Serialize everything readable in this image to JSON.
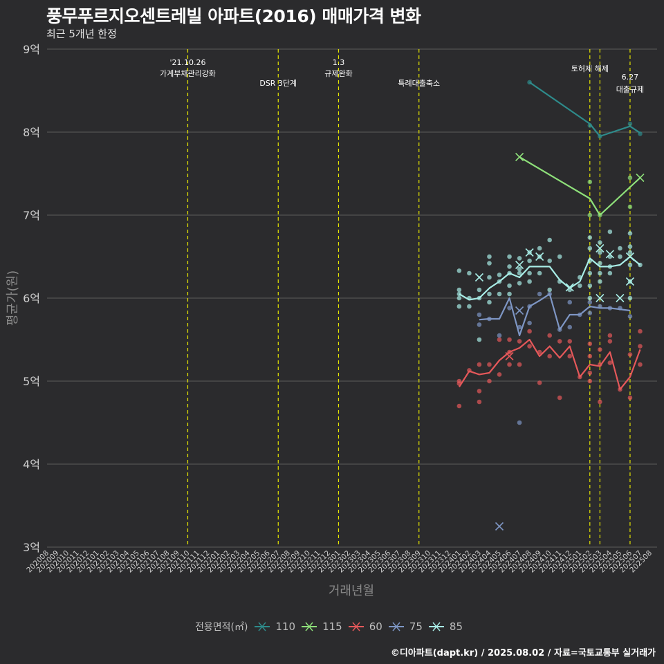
{
  "title": "풍무푸르지오센트레빌 아파트(2016) 매매가격 변화",
  "subtitle": "최근 5개년 한정",
  "caption": "©디아파트(dapt.kr) / 2025.08.02 / 자료=국토교통부 실거래가",
  "colors": {
    "background": "#2b2b2d",
    "grid": "#5c5c5c",
    "annotation": "#e6e600"
  },
  "legend": {
    "title": "전용면적(㎡)",
    "items": [
      {
        "label": "110",
        "color": "#2e8b8b"
      },
      {
        "label": "115",
        "color": "#8ee07a"
      },
      {
        "label": "60",
        "color": "#e5585a"
      },
      {
        "label": "75",
        "color": "#7e96c4"
      },
      {
        "label": "85",
        "color": "#a8ede6"
      }
    ]
  },
  "chart_data": {
    "type": "line",
    "xlabel": "거래년월",
    "ylabel": "평균가(원)",
    "ylim": [
      3,
      9
    ],
    "ytick_labels": [
      "3억",
      "4억",
      "5억",
      "6억",
      "7억",
      "8억",
      "9억"
    ],
    "x_categories": [
      "202008",
      "202009",
      "202010",
      "202011",
      "202012",
      "202101",
      "202102",
      "202103",
      "202104",
      "202105",
      "202106",
      "202107",
      "202108",
      "202109",
      "202110",
      "202111",
      "202112",
      "202201",
      "202202",
      "202203",
      "202204",
      "202205",
      "202206",
      "202207",
      "202208",
      "202209",
      "202210",
      "202211",
      "202212",
      "202301",
      "202302",
      "202303",
      "202304",
      "202305",
      "202306",
      "202307",
      "202308",
      "202309",
      "202310",
      "202311",
      "202312",
      "202401",
      "202402",
      "202403",
      "202404",
      "202405",
      "202406",
      "202407",
      "202408",
      "202409",
      "202410",
      "202411",
      "202412",
      "202501",
      "202502",
      "202503",
      "202504",
      "202505",
      "202506",
      "202507",
      "202508"
    ],
    "annotations": [
      {
        "x": "202110",
        "line1": "'21.10.26",
        "line2": "가계부채관리강화"
      },
      {
        "x": "202207",
        "line1": "",
        "line2": "DSR 3단계"
      },
      {
        "x": "202301",
        "line1": "1.3",
        "line2": "규제완화"
      },
      {
        "x": "202309",
        "line1": "",
        "line2": "특례대출축소"
      },
      {
        "x": "202502",
        "line1": "",
        "line2": "토허제 해제"
      },
      {
        "x": "202503",
        "line1": "",
        "line2": ""
      },
      {
        "x": "202506",
        "line1": "6.27",
        "line2": "대출규제"
      }
    ],
    "series": [
      {
        "name": "110",
        "color": "#2e8b8b",
        "line": [
          [
            "202408",
            8.6
          ],
          [
            "202502",
            8.1
          ],
          [
            "202503",
            7.95
          ],
          [
            "202506",
            8.07
          ],
          [
            "202507",
            7.99
          ]
        ],
        "points": [
          [
            "202408",
            8.6
          ],
          [
            "202502",
            8.08
          ],
          [
            "202503",
            7.95
          ],
          [
            "202506",
            8.1
          ],
          [
            "202507",
            7.98
          ]
        ],
        "crosses": []
      },
      {
        "name": "115",
        "color": "#8ee07a",
        "line": [
          [
            "202407",
            7.7
          ],
          [
            "202502",
            7.2
          ],
          [
            "202503",
            7.0
          ],
          [
            "202507",
            7.45
          ]
        ],
        "points": [
          [
            "202502",
            7.4
          ],
          [
            "202502",
            7.0
          ],
          [
            "202503",
            7.0
          ],
          [
            "202506",
            7.1
          ],
          [
            "202506",
            7.45
          ]
        ],
        "crosses": [
          [
            "202407",
            7.7
          ],
          [
            "202507",
            7.45
          ]
        ]
      },
      {
        "name": "60",
        "color": "#e5585a",
        "line": [
          [
            "202401",
            4.93
          ],
          [
            "202402",
            5.12
          ],
          [
            "202403",
            5.08
          ],
          [
            "202404",
            5.1
          ],
          [
            "202405",
            5.25
          ],
          [
            "202406",
            5.35
          ],
          [
            "202407",
            5.4
          ],
          [
            "202408",
            5.5
          ],
          [
            "202409",
            5.3
          ],
          [
            "202410",
            5.42
          ],
          [
            "202411",
            5.28
          ],
          [
            "202412",
            5.42
          ],
          [
            "202501",
            5.05
          ],
          [
            "202502",
            5.2
          ],
          [
            "202503",
            5.18
          ],
          [
            "202504",
            5.35
          ],
          [
            "202505",
            4.9
          ],
          [
            "202506",
            5.05
          ],
          [
            "202507",
            5.38
          ]
        ],
        "points": [
          [
            "202401",
            5.0
          ],
          [
            "202401",
            4.97
          ],
          [
            "202401",
            4.7
          ],
          [
            "202402",
            5.13
          ],
          [
            "202403",
            5.2
          ],
          [
            "202403",
            4.88
          ],
          [
            "202403",
            4.75
          ],
          [
            "202404",
            5.2
          ],
          [
            "202404",
            5.0
          ],
          [
            "202405",
            5.5
          ],
          [
            "202405",
            5.08
          ],
          [
            "202406",
            5.5
          ],
          [
            "202406",
            5.35
          ],
          [
            "202406",
            5.2
          ],
          [
            "202407",
            5.48
          ],
          [
            "202407",
            5.2
          ],
          [
            "202408",
            5.6
          ],
          [
            "202408",
            5.42
          ],
          [
            "202409",
            4.98
          ],
          [
            "202409",
            5.35
          ],
          [
            "202410",
            5.55
          ],
          [
            "202410",
            5.3
          ],
          [
            "202411",
            5.48
          ],
          [
            "202411",
            4.8
          ],
          [
            "202412",
            5.48
          ],
          [
            "202412",
            5.3
          ],
          [
            "202501",
            5.05
          ],
          [
            "202502",
            5.45
          ],
          [
            "202502",
            5.3
          ],
          [
            "202502",
            5.1
          ],
          [
            "202502",
            5.0
          ],
          [
            "202503",
            5.38
          ],
          [
            "202503",
            5.2
          ],
          [
            "202503",
            4.75
          ],
          [
            "202504",
            5.55
          ],
          [
            "202504",
            5.48
          ],
          [
            "202504",
            5.22
          ],
          [
            "202505",
            4.9
          ],
          [
            "202506",
            5.32
          ],
          [
            "202506",
            4.8
          ],
          [
            "202507",
            5.6
          ],
          [
            "202507",
            5.42
          ],
          [
            "202507",
            5.2
          ]
        ],
        "crosses": [
          [
            "202406",
            5.3
          ]
        ]
      },
      {
        "name": "75",
        "color": "#7e96c4",
        "line": [
          [
            "202403",
            5.74
          ],
          [
            "202404",
            5.75
          ],
          [
            "202405",
            5.75
          ],
          [
            "202406",
            6.0
          ],
          [
            "202407",
            5.55
          ],
          [
            "202408",
            5.9
          ],
          [
            "202409",
            5.97
          ],
          [
            "202410",
            6.05
          ],
          [
            "202411",
            5.62
          ],
          [
            "202412",
            5.8
          ],
          [
            "202501",
            5.8
          ],
          [
            "202502",
            5.9
          ],
          [
            "202503",
            5.88
          ],
          [
            "202504",
            5.88
          ],
          [
            "202506",
            5.85
          ]
        ],
        "points": [
          [
            "202403",
            5.8
          ],
          [
            "202403",
            5.68
          ],
          [
            "202404",
            5.75
          ],
          [
            "202405",
            5.55
          ],
          [
            "202406",
            5.88
          ],
          [
            "202407",
            5.65
          ],
          [
            "202407",
            4.5
          ],
          [
            "202408",
            5.9
          ],
          [
            "202408",
            5.7
          ],
          [
            "202409",
            6.05
          ],
          [
            "202410",
            6.05
          ],
          [
            "202411",
            5.62
          ],
          [
            "202412",
            5.95
          ],
          [
            "202412",
            5.65
          ],
          [
            "202501",
            5.8
          ],
          [
            "202502",
            5.95
          ],
          [
            "202502",
            5.82
          ],
          [
            "202503",
            5.9
          ],
          [
            "202504",
            5.88
          ],
          [
            "202505",
            5.88
          ],
          [
            "202506",
            5.78
          ]
        ],
        "crosses": [
          [
            "202405",
            3.25
          ],
          [
            "202407",
            5.85
          ]
        ]
      },
      {
        "name": "85",
        "color": "#a8ede6",
        "line": [
          [
            "202401",
            6.05
          ],
          [
            "202402",
            5.98
          ],
          [
            "202403",
            6.0
          ],
          [
            "202404",
            6.12
          ],
          [
            "202405",
            6.2
          ],
          [
            "202406",
            6.3
          ],
          [
            "202407",
            6.25
          ],
          [
            "202408",
            6.38
          ],
          [
            "202409",
            6.38
          ],
          [
            "202410",
            6.38
          ],
          [
            "202411",
            6.22
          ],
          [
            "202412",
            6.12
          ],
          [
            "202501",
            6.2
          ],
          [
            "202502",
            6.48
          ],
          [
            "202503",
            6.38
          ],
          [
            "202504",
            6.38
          ],
          [
            "202505",
            6.4
          ],
          [
            "202506",
            6.5
          ],
          [
            "202507",
            6.4
          ]
        ],
        "points": [
          [
            "202401",
            6.33
          ],
          [
            "202401",
            6.1
          ],
          [
            "202401",
            6.05
          ],
          [
            "202401",
            6.0
          ],
          [
            "202401",
            5.9
          ],
          [
            "202402",
            6.3
          ],
          [
            "202402",
            6.0
          ],
          [
            "202402",
            5.9
          ],
          [
            "202403",
            6.1
          ],
          [
            "202403",
            6.0
          ],
          [
            "202403",
            5.5
          ],
          [
            "202404",
            6.5
          ],
          [
            "202404",
            6.42
          ],
          [
            "202404",
            6.25
          ],
          [
            "202404",
            6.05
          ],
          [
            "202404",
            5.95
          ],
          [
            "202405",
            6.28
          ],
          [
            "202405",
            6.2
          ],
          [
            "202405",
            6.05
          ],
          [
            "202406",
            6.5
          ],
          [
            "202406",
            6.38
          ],
          [
            "202406",
            6.3
          ],
          [
            "202406",
            6.15
          ],
          [
            "202406",
            6.05
          ],
          [
            "202407",
            6.48
          ],
          [
            "202407",
            6.35
          ],
          [
            "202407",
            6.3
          ],
          [
            "202407",
            6.18
          ],
          [
            "202408",
            6.55
          ],
          [
            "202408",
            6.45
          ],
          [
            "202408",
            6.3
          ],
          [
            "202408",
            6.2
          ],
          [
            "202409",
            6.6
          ],
          [
            "202409",
            6.5
          ],
          [
            "202409",
            6.3
          ],
          [
            "202410",
            6.7
          ],
          [
            "202410",
            6.45
          ],
          [
            "202410",
            6.1
          ],
          [
            "202411",
            6.5
          ],
          [
            "202411",
            6.2
          ],
          [
            "202412",
            6.1
          ],
          [
            "202501",
            6.25
          ],
          [
            "202501",
            6.15
          ],
          [
            "202502",
            6.73
          ],
          [
            "202502",
            6.6
          ],
          [
            "202502",
            6.45
          ],
          [
            "202502",
            6.3
          ],
          [
            "202502",
            6.15
          ],
          [
            "202502",
            6.0
          ],
          [
            "202503",
            6.67
          ],
          [
            "202503",
            6.55
          ],
          [
            "202503",
            6.42
          ],
          [
            "202503",
            6.3
          ],
          [
            "202503",
            6.2
          ],
          [
            "202504",
            6.8
          ],
          [
            "202504",
            6.5
          ],
          [
            "202504",
            6.38
          ],
          [
            "202504",
            6.3
          ],
          [
            "202505",
            6.6
          ],
          [
            "202505",
            6.5
          ],
          [
            "202506",
            6.78
          ],
          [
            "202506",
            6.62
          ],
          [
            "202506",
            6.55
          ],
          [
            "202506",
            6.4
          ],
          [
            "202506",
            6.2
          ],
          [
            "202506",
            6.0
          ],
          [
            "202507",
            6.4
          ]
        ],
        "crosses": [
          [
            "202403",
            6.25
          ],
          [
            "202407",
            6.4
          ],
          [
            "202408",
            6.55
          ],
          [
            "202409",
            6.5
          ],
          [
            "202412",
            6.13
          ],
          [
            "202503",
            6.6
          ],
          [
            "202503",
            6.0
          ],
          [
            "202504",
            6.53
          ],
          [
            "202505",
            6.0
          ],
          [
            "202506",
            6.5
          ],
          [
            "202506",
            6.2
          ]
        ]
      }
    ]
  }
}
